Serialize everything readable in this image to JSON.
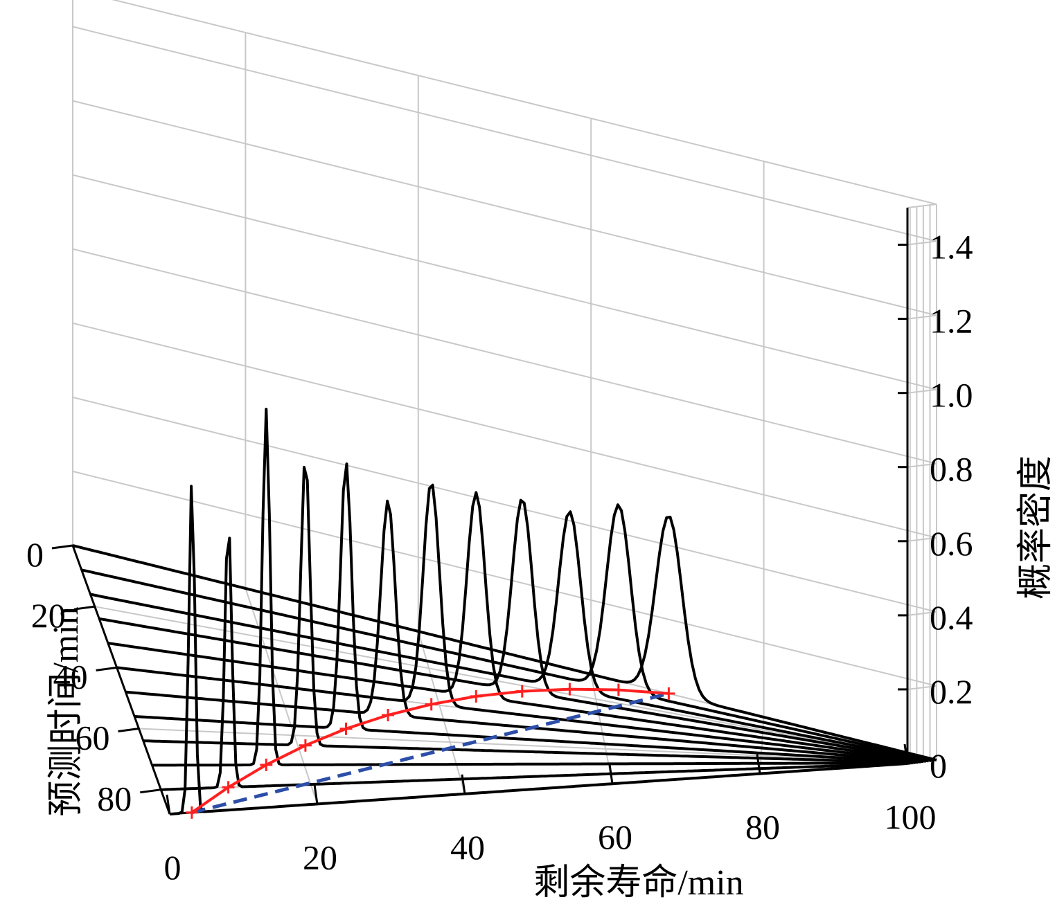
{
  "chart_data": {
    "type": "line",
    "projection": "3d",
    "xlabel": "剩余寿命/min",
    "ylabel": "预测时间/min",
    "zlabel": "概率密度",
    "x_ticks": [
      "0",
      "20",
      "40",
      "60",
      "80",
      "100"
    ],
    "y_ticks": [
      "0",
      "20",
      "40",
      "60",
      "80"
    ],
    "z_ticks": [
      "0",
      "0.2",
      "0.4",
      "0.6",
      "0.8",
      "1.0",
      "1.2",
      "1.4"
    ],
    "xlim": [
      0,
      100
    ],
    "ylim": [
      0,
      88
    ],
    "zlim": [
      0,
      1.5
    ],
    "grid": true,
    "pdf_slices": [
      {
        "t": 88,
        "mean": 3,
        "peak": 0.9,
        "sd": 0.4
      },
      {
        "t": 80,
        "mean": 9,
        "peak": 0.72,
        "sd": 0.45
      },
      {
        "t": 72,
        "mean": 15,
        "peak": 0.96,
        "sd": 0.5
      },
      {
        "t": 64,
        "mean": 21,
        "peak": 0.78,
        "sd": 0.6
      },
      {
        "t": 56,
        "mean": 27,
        "peak": 0.72,
        "sd": 0.7
      },
      {
        "t": 48,
        "mean": 33,
        "peak": 0.58,
        "sd": 0.9
      },
      {
        "t": 40,
        "mean": 39,
        "peak": 0.6,
        "sd": 1.0
      },
      {
        "t": 32,
        "mean": 45,
        "peak": 0.55,
        "sd": 1.1
      },
      {
        "t": 24,
        "mean": 51,
        "peak": 0.52,
        "sd": 1.2
      },
      {
        "t": 16,
        "mean": 57,
        "peak": 0.48,
        "sd": 1.3
      },
      {
        "t": 8,
        "mean": 63,
        "peak": 0.5,
        "sd": 1.4
      },
      {
        "t": 0,
        "mean": 69,
        "peak": 0.48,
        "sd": 1.5
      }
    ],
    "series": [
      {
        "style": "blue-dashed",
        "x": [
          3,
          69
        ],
        "y": [
          88,
          0
        ],
        "z": [
          0,
          0
        ]
      },
      {
        "style": "red-solid-cross",
        "x": [
          3,
          9,
          15,
          21,
          27,
          33,
          39,
          45,
          51,
          57,
          63,
          69
        ],
        "y": [
          88,
          80,
          72,
          64,
          56,
          48,
          40,
          32,
          24,
          16,
          8,
          0
        ],
        "z": [
          0,
          0,
          0,
          0,
          0,
          0,
          0,
          0,
          0,
          0,
          0,
          0
        ]
      }
    ],
    "colors": {
      "pdf": "#000000",
      "actual": "#2c4ea8",
      "predicted": "#ff2020",
      "grid": "#c8c8c8"
    }
  }
}
